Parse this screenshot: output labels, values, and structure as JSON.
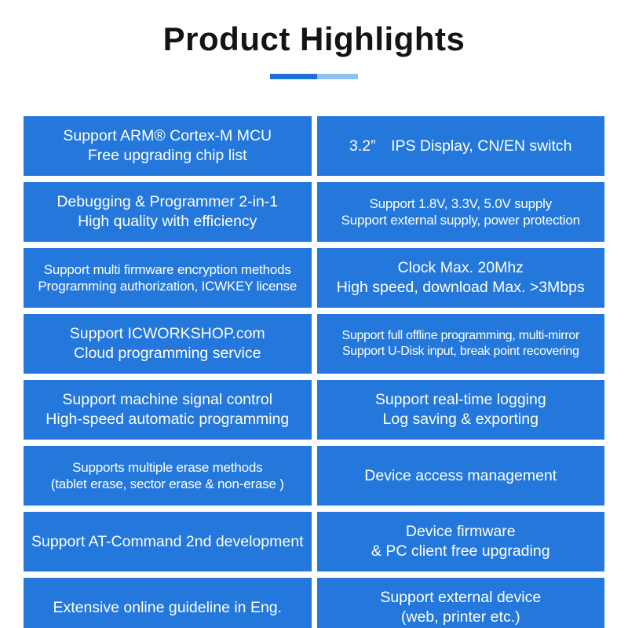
{
  "title": "Product Highlights",
  "divider": {
    "left_color": "#1b72d2",
    "right_color": "#8fc0f0"
  },
  "grid": {
    "cell_color": "#2478db",
    "cells": [
      {
        "lines": [
          "Support ARM® Cortex-M MCU",
          "Free upgrading chip list"
        ]
      },
      {
        "lines": [
          "3.2” IPS Display, CN/EN switch"
        ]
      },
      {
        "lines": [
          "Debugging & Programmer 2-in-1",
          "High quality with efficiency"
        ]
      },
      {
        "lines": [
          "Support 1.8V, 3.3V, 5.0V supply",
          "Support external supply, power protection"
        ]
      },
      {
        "lines": [
          "Support multi firmware encryption methods",
          "Programming authorization, ICWKEY license"
        ]
      },
      {
        "lines": [
          "Clock Max. 20Mhz",
          "High speed, download Max. >3Mbps"
        ]
      },
      {
        "lines": [
          "Support ICWORKSHOP.com",
          "Cloud programming service"
        ]
      },
      {
        "lines": [
          "Support full offline programming, multi-mirror",
          "Support U-Disk input, break point recovering"
        ]
      },
      {
        "lines": [
          "Support machine signal control",
          "High-speed automatic programming"
        ]
      },
      {
        "lines": [
          "Support real-time logging",
          "Log saving & exporting"
        ]
      },
      {
        "lines": [
          "Supports multiple erase methods",
          "(tablet erase, sector erase & non-erase )"
        ]
      },
      {
        "lines": [
          "Device access management"
        ]
      },
      {
        "lines": [
          "Support AT-Command 2nd development"
        ]
      },
      {
        "lines": [
          "Device firmware",
          "& PC client free upgrading"
        ]
      },
      {
        "lines": [
          "Extensive online guideline in Eng."
        ]
      },
      {
        "lines": [
          "Support external device",
          "(web, printer etc.)"
        ]
      }
    ]
  }
}
